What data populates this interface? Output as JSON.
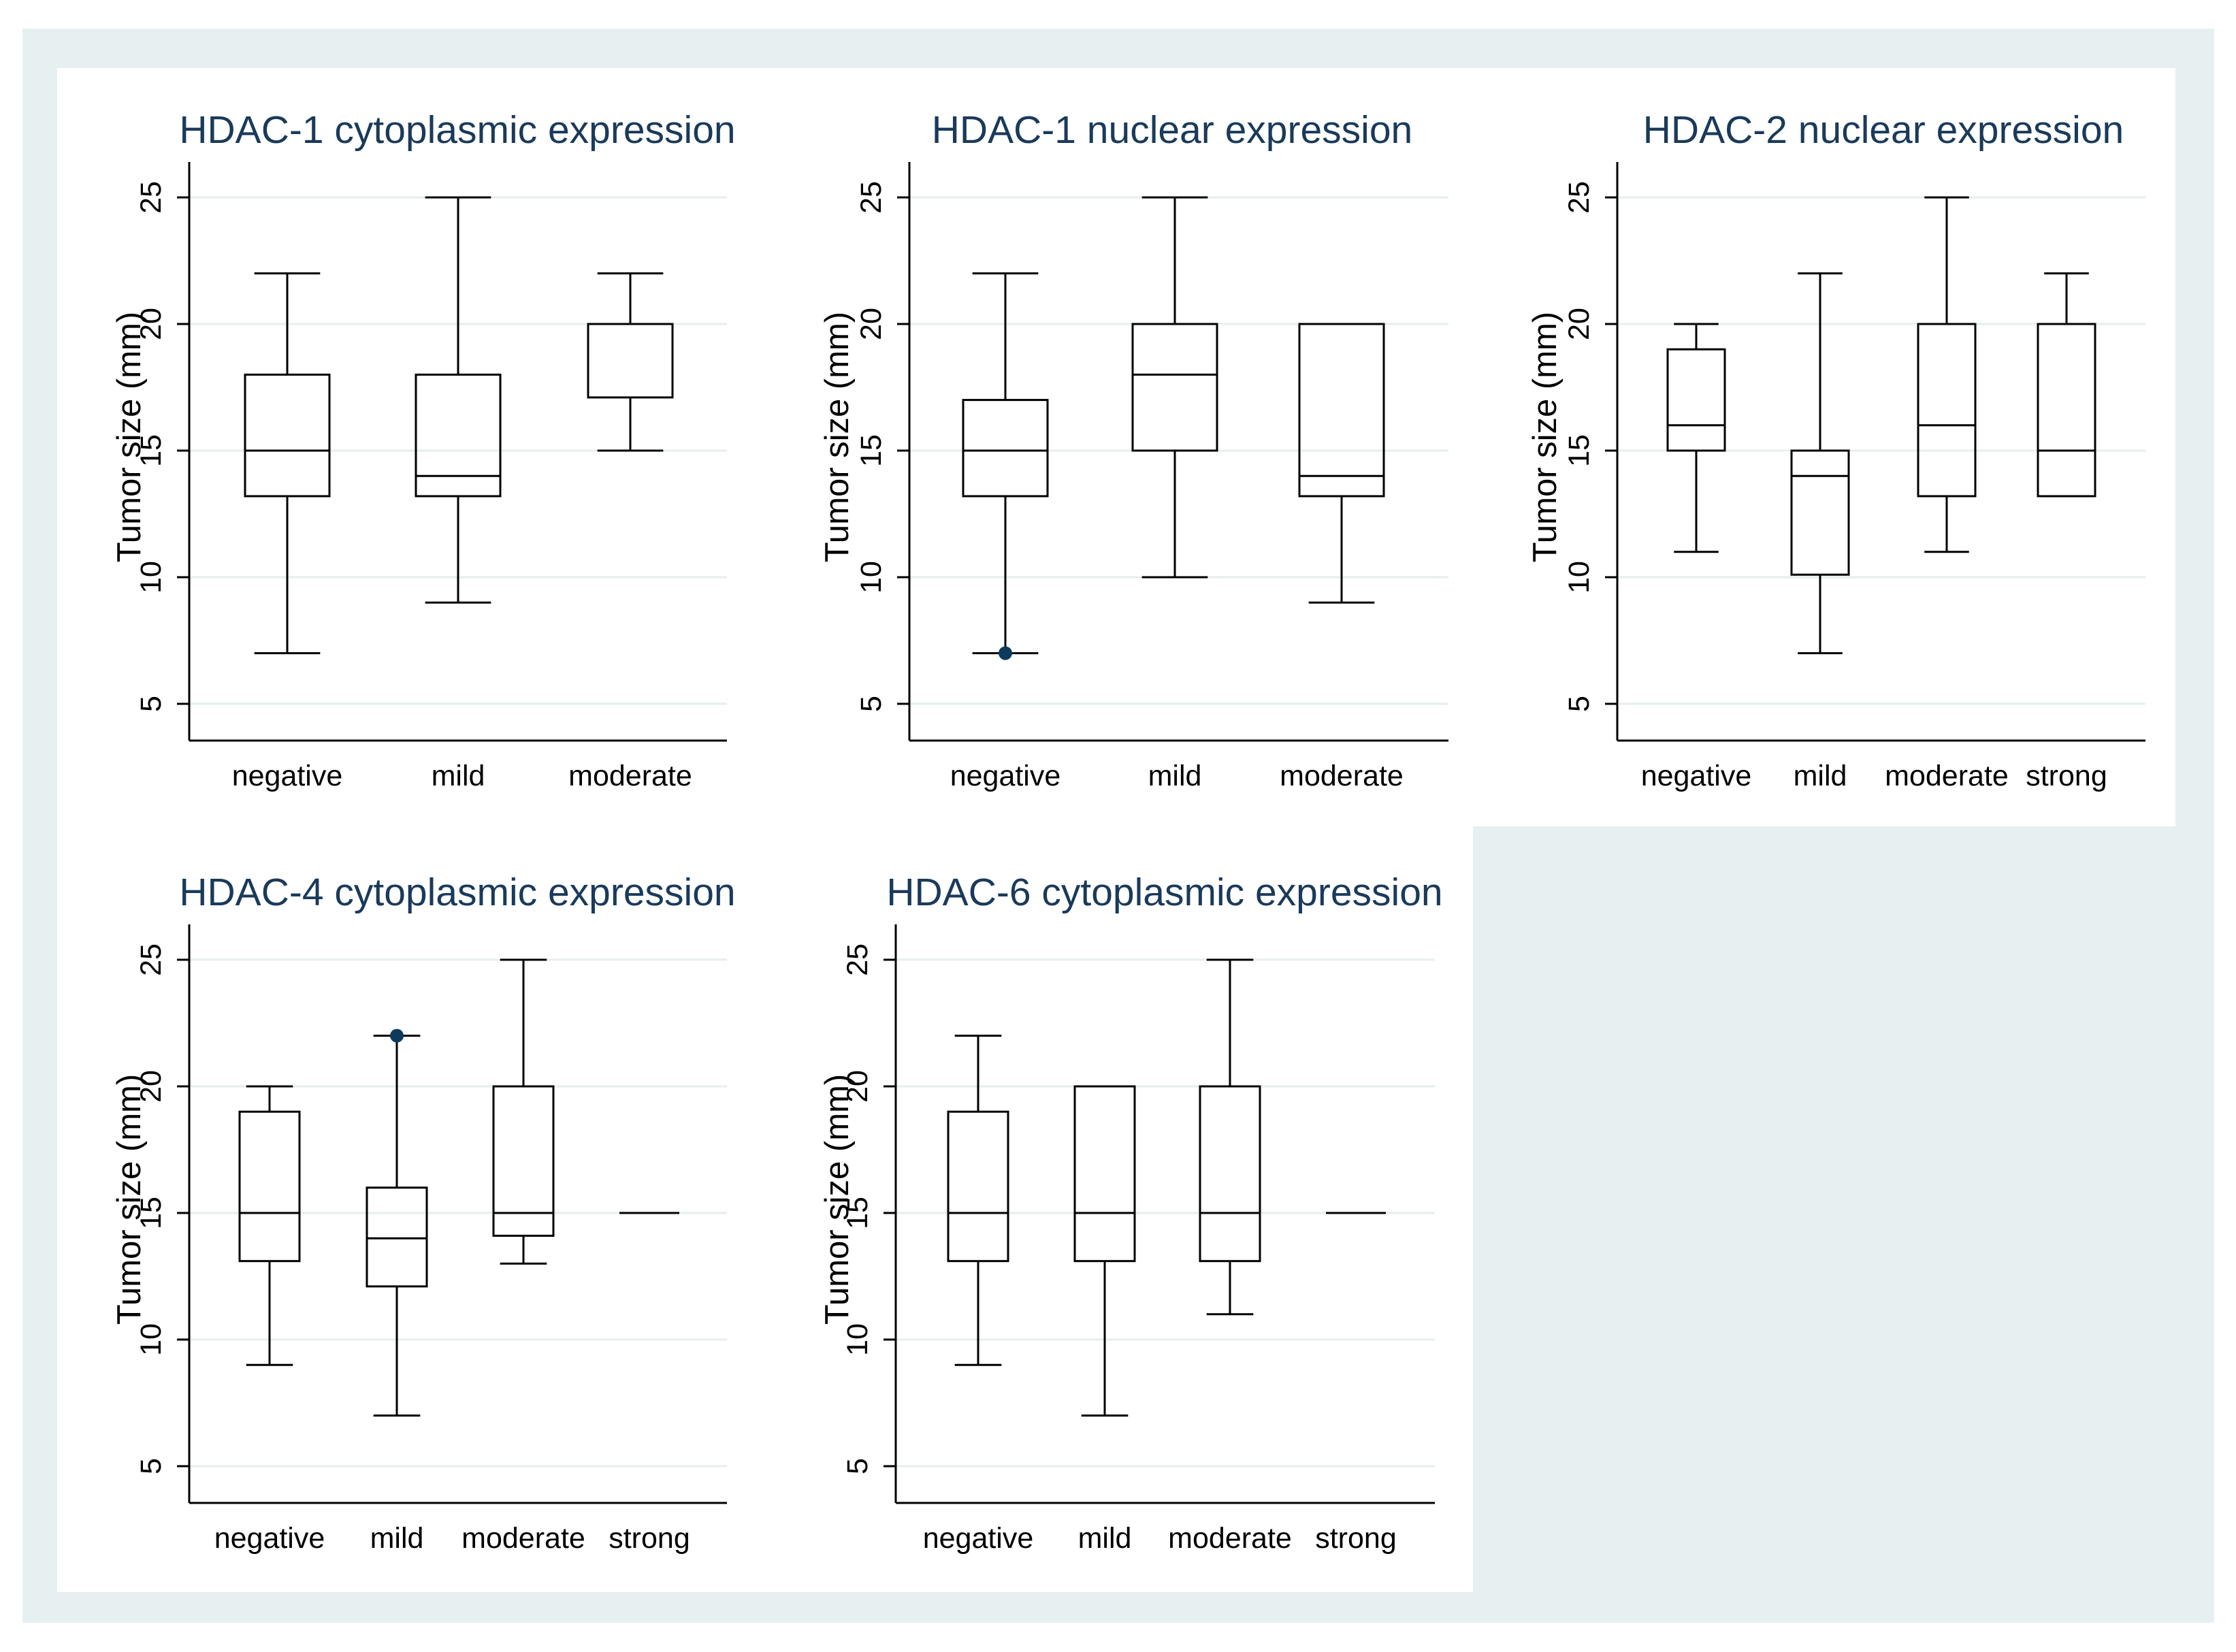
{
  "figure": {
    "background_color": "#e6f0f0",
    "panel_color": "#ffffff",
    "gridline_color": "#e6eeee",
    "line_color": "#000000",
    "outlier_color": "#0d3a5c"
  },
  "chart_data": [
    {
      "type": "box",
      "title": "HDAC-1 cytoplasmic expression",
      "ylabel": "Tumor size (mm)",
      "yticks": [
        5,
        10,
        15,
        20,
        25
      ],
      "categories": [
        "negative",
        "mild",
        "moderate"
      ],
      "boxes": [
        {
          "whisker_low": 7,
          "q1": 13.2,
          "median": 15,
          "q3": 18,
          "whisker_high": 22,
          "outliers": []
        },
        {
          "whisker_low": 9,
          "q1": 13.2,
          "median": 14,
          "q3": 18,
          "whisker_high": 25,
          "outliers": []
        },
        {
          "whisker_low": 15,
          "q1": 17.1,
          "median": 20,
          "q3": 20,
          "whisker_high": 22,
          "outliers": []
        }
      ]
    },
    {
      "type": "box",
      "title": "HDAC-1 nuclear expression",
      "ylabel": "Tumor size (mm)",
      "yticks": [
        5,
        10,
        15,
        20,
        25
      ],
      "categories": [
        "negative",
        "mild",
        "moderate"
      ],
      "boxes": [
        {
          "whisker_low": 7,
          "q1": 13.2,
          "median": 15,
          "q3": 17,
          "whisker_high": 22,
          "outliers": [
            7
          ]
        },
        {
          "whisker_low": 10,
          "q1": 15,
          "median": 18,
          "q3": 20,
          "whisker_high": 25,
          "outliers": []
        },
        {
          "whisker_low": 9,
          "q1": 13.2,
          "median": 14,
          "q3": 20,
          "whisker_high": 20,
          "outliers": []
        }
      ]
    },
    {
      "type": "box",
      "title": "HDAC-2 nuclear expression",
      "ylabel": "Tumor size (mm)",
      "yticks": [
        5,
        10,
        15,
        20,
        25
      ],
      "categories": [
        "negative",
        "mild",
        "moderate",
        "strong"
      ],
      "boxes": [
        {
          "whisker_low": 11,
          "q1": 15,
          "median": 16,
          "q3": 19,
          "whisker_high": 20,
          "outliers": []
        },
        {
          "whisker_low": 7,
          "q1": 10.1,
          "median": 14,
          "q3": 15,
          "whisker_high": 22,
          "outliers": []
        },
        {
          "whisker_low": 11,
          "q1": 13.2,
          "median": 16,
          "q3": 20,
          "whisker_high": 25,
          "outliers": []
        },
        {
          "whisker_low": 13.2,
          "q1": 13.2,
          "median": 15,
          "q3": 20,
          "whisker_high": 22,
          "outliers": []
        }
      ]
    },
    {
      "type": "box",
      "title": "HDAC-4 cytoplasmic expression",
      "ylabel": "Tumor size (mm)",
      "yticks": [
        5,
        10,
        15,
        20,
        25
      ],
      "categories": [
        "negative",
        "mild",
        "moderate",
        "strong"
      ],
      "boxes": [
        {
          "whisker_low": 9,
          "q1": 13.1,
          "median": 15,
          "q3": 19,
          "whisker_high": 20,
          "outliers": []
        },
        {
          "whisker_low": 7,
          "q1": 12.1,
          "median": 14,
          "q3": 16,
          "whisker_high": 22,
          "outliers": [
            22
          ]
        },
        {
          "whisker_low": 13,
          "q1": 14.1,
          "median": 15,
          "q3": 20,
          "whisker_high": 25,
          "outliers": []
        },
        {
          "whisker_low": 15,
          "q1": 15,
          "median": 15,
          "q3": 15,
          "whisker_high": 15,
          "outliers": []
        }
      ]
    },
    {
      "type": "box",
      "title": "HDAC-6 cytoplasmic expression",
      "ylabel": "Tumor size (mm)",
      "yticks": [
        5,
        10,
        15,
        20,
        25
      ],
      "categories": [
        "negative",
        "mild",
        "moderate",
        "strong"
      ],
      "boxes": [
        {
          "whisker_low": 9,
          "q1": 13.1,
          "median": 15,
          "q3": 19,
          "whisker_high": 22,
          "outliers": []
        },
        {
          "whisker_low": 7,
          "q1": 13.1,
          "median": 15,
          "q3": 20,
          "whisker_high": 20,
          "outliers": []
        },
        {
          "whisker_low": 11,
          "q1": 13.1,
          "median": 15,
          "q3": 20,
          "whisker_high": 25,
          "outliers": []
        },
        {
          "whisker_low": 15,
          "q1": 15,
          "median": 15,
          "q3": 15,
          "whisker_high": 15,
          "outliers": []
        }
      ]
    }
  ]
}
